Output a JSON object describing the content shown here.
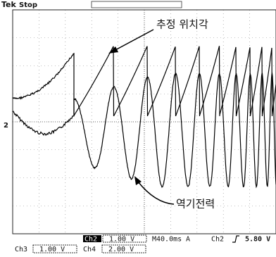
{
  "header": {
    "brand": "Tek",
    "state": "Stop"
  },
  "screen": {
    "channel_marker": "2"
  },
  "annotations": {
    "position_angle": "추정 위치각",
    "back_emf": "역기전력"
  },
  "status": {
    "row1": {
      "channel": "Ch2",
      "scale": "1.00 V",
      "timebase": "M40.0ms",
      "trigger_mode": "A",
      "trigger_channel": "Ch2",
      "trigger_level": "5.80 V"
    },
    "row2": {
      "ch3": "Ch3",
      "ch3_scale": "1.00 V",
      "ch4": "Ch4",
      "ch4_scale": "2.00 V"
    }
  }
}
